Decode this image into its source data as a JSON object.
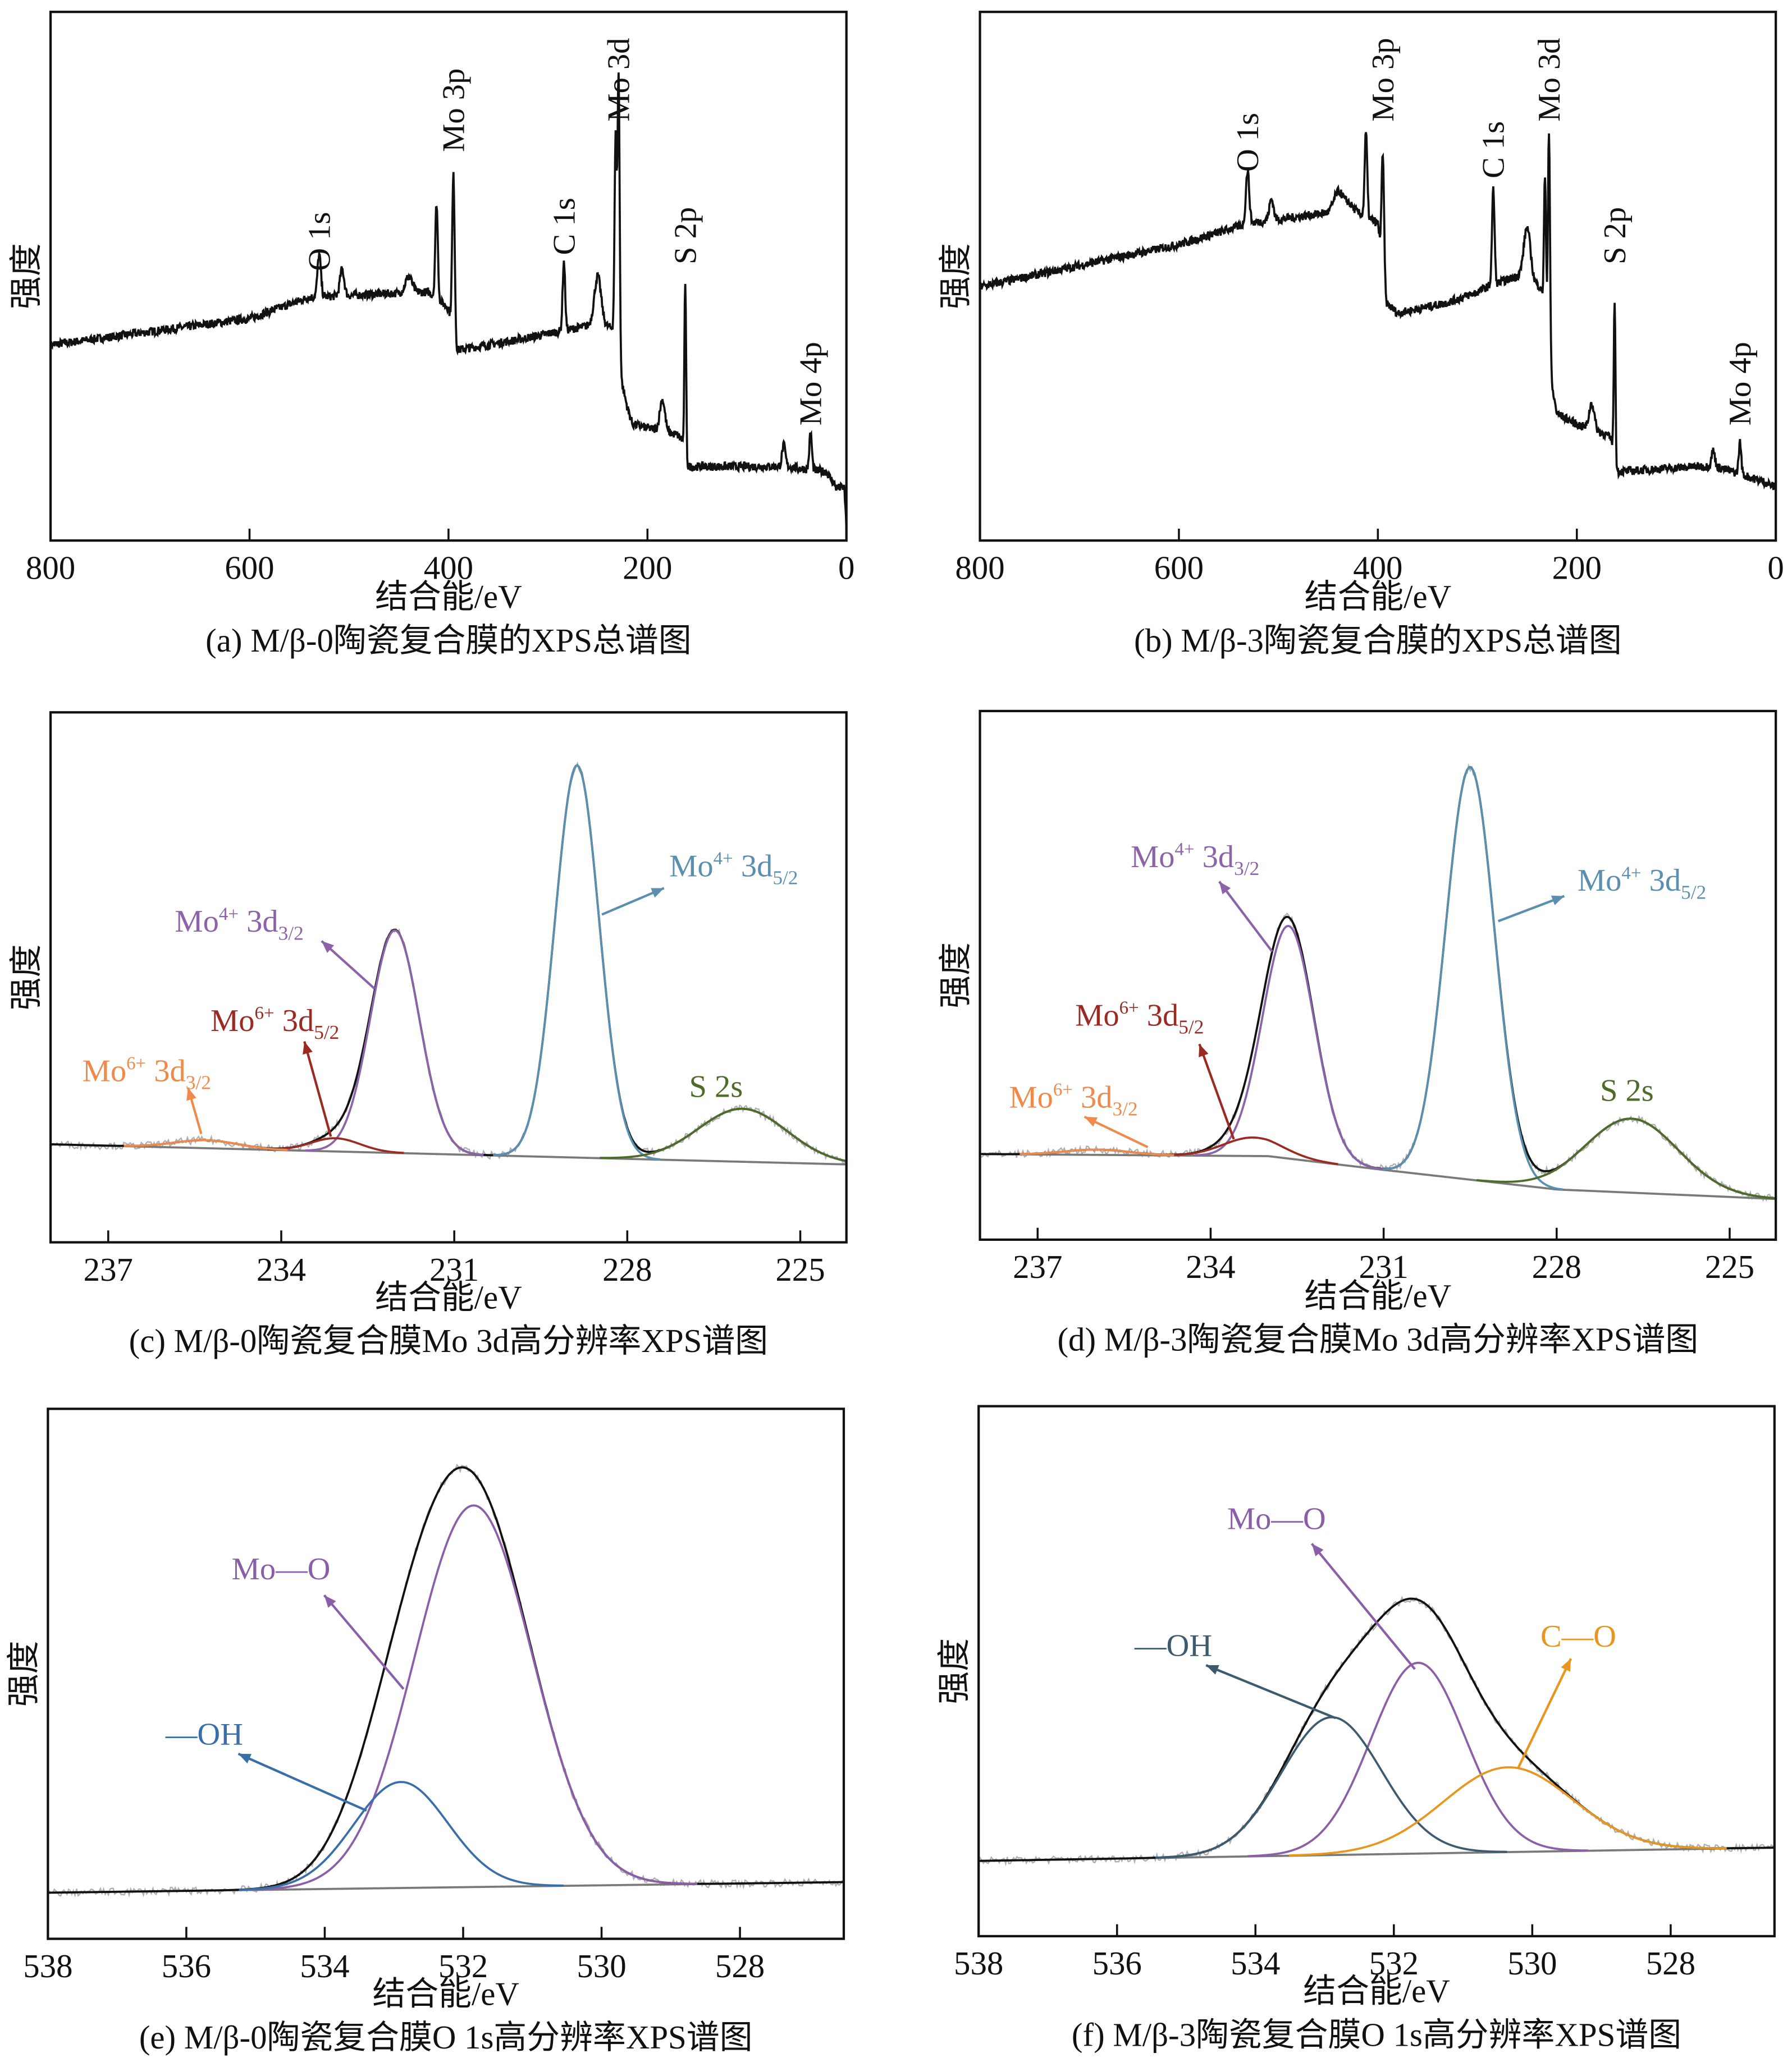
{
  "chart_data": [
    {
      "id": "a",
      "type": "line",
      "caption": "(a) M/β-0陶瓷复合膜的XPS总谱图",
      "xlabel": "结合能/eV",
      "ylabel": "强度",
      "xlim": [
        800,
        0
      ],
      "ylim": [
        0,
        100
      ],
      "x_reversed": true,
      "xticks": [
        800,
        600,
        400,
        200,
        0
      ],
      "grid": false,
      "envelope_color": "#111111",
      "background": [
        [
          800,
          37
        ],
        [
          600,
          42
        ],
        [
          540,
          46
        ],
        [
          430,
          47
        ],
        [
          420,
          47
        ],
        [
          400,
          44
        ],
        [
          392,
          36
        ],
        [
          330,
          38
        ],
        [
          250,
          41
        ],
        [
          232,
          40
        ],
        [
          226,
          30
        ],
        [
          220,
          25
        ],
        [
          215,
          22
        ],
        [
          170,
          20
        ],
        [
          165,
          19
        ],
        [
          160,
          14
        ],
        [
          100,
          14
        ],
        [
          60,
          14
        ],
        [
          20,
          13
        ],
        [
          10,
          10
        ],
        [
          2,
          10
        ],
        [
          0,
          2
        ]
      ],
      "peaks": [
        {
          "center": 530,
          "amplitude": 8,
          "fwhm": 4
        },
        {
          "center": 507,
          "amplitude": 5,
          "fwhm": 5
        },
        {
          "center": 440,
          "amplitude": 3,
          "fwhm": 8
        },
        {
          "center": 412,
          "amplitude": 18,
          "fwhm": 3
        },
        {
          "center": 395,
          "amplitude": 30,
          "fwhm": 3
        },
        {
          "center": 284,
          "amplitude": 13,
          "fwhm": 3
        },
        {
          "center": 250,
          "amplitude": 9,
          "fwhm": 8
        },
        {
          "center": 229,
          "amplitude": 53,
          "fwhm": 2.5
        },
        {
          "center": 232,
          "amplitude": 36,
          "fwhm": 2.5
        },
        {
          "center": 185,
          "amplitude": 6,
          "fwhm": 6
        },
        {
          "center": 162,
          "amplitude": 33,
          "fwhm": 2
        },
        {
          "center": 63,
          "amplitude": 4,
          "fwhm": 4
        },
        {
          "center": 36,
          "amplitude": 7,
          "fwhm": 3
        }
      ],
      "peak_labels": [
        {
          "text": "O 1s",
          "x": 530
        },
        {
          "text": "Mo 3p",
          "x": 395
        },
        {
          "text": "C 1s",
          "x": 284
        },
        {
          "text": "Mo 3d",
          "x": 229
        },
        {
          "text": "S 2p",
          "x": 162
        },
        {
          "text": "Mo 4p",
          "x": 36
        }
      ]
    },
    {
      "id": "b",
      "type": "line",
      "caption": "(b) M/β-3陶瓷复合膜的XPS总谱图",
      "xlabel": "结合能/eV",
      "ylabel": "强度",
      "xlim": [
        800,
        0
      ],
      "ylim": [
        0,
        100
      ],
      "x_reversed": true,
      "xticks": [
        800,
        600,
        400,
        200,
        0
      ],
      "grid": false,
      "envelope_color": "#111111",
      "background": [
        [
          800,
          48
        ],
        [
          700,
          52
        ],
        [
          600,
          56
        ],
        [
          530,
          60
        ],
        [
          450,
          62
        ],
        [
          430,
          64
        ],
        [
          420,
          62
        ],
        [
          400,
          60
        ],
        [
          392,
          45
        ],
        [
          380,
          43
        ],
        [
          330,
          45
        ],
        [
          300,
          47
        ],
        [
          290,
          48
        ],
        [
          260,
          50
        ],
        [
          236,
          48
        ],
        [
          226,
          30
        ],
        [
          220,
          24
        ],
        [
          200,
          22
        ],
        [
          170,
          20
        ],
        [
          165,
          19
        ],
        [
          160,
          13
        ],
        [
          80,
          14
        ],
        [
          60,
          14
        ],
        [
          10,
          11
        ],
        [
          0,
          10
        ]
      ],
      "peaks": [
        {
          "center": 531,
          "amplitude": 10,
          "fwhm": 4
        },
        {
          "center": 507,
          "amplitude": 4,
          "fwhm": 5
        },
        {
          "center": 440,
          "amplitude": 3,
          "fwhm": 10
        },
        {
          "center": 412,
          "amplitude": 16,
          "fwhm": 3
        },
        {
          "center": 395,
          "amplitude": 22,
          "fwhm": 3
        },
        {
          "center": 284,
          "amplitude": 18,
          "fwhm": 3
        },
        {
          "center": 250,
          "amplitude": 10,
          "fwhm": 8
        },
        {
          "center": 228,
          "amplitude": 44,
          "fwhm": 2.5
        },
        {
          "center": 232,
          "amplitude": 28,
          "fwhm": 2.5
        },
        {
          "center": 185,
          "amplitude": 5,
          "fwhm": 6
        },
        {
          "center": 162,
          "amplitude": 30,
          "fwhm": 2
        },
        {
          "center": 63,
          "amplitude": 3,
          "fwhm": 4
        },
        {
          "center": 36,
          "amplitude": 6,
          "fwhm": 3
        }
      ],
      "peak_labels": [
        {
          "text": "O 1s",
          "x": 531
        },
        {
          "text": "Mo 3p",
          "x": 395
        },
        {
          "text": "C 1s",
          "x": 284
        },
        {
          "text": "Mo 3d",
          "x": 228
        },
        {
          "text": "S 2p",
          "x": 162
        },
        {
          "text": "Mo 4p",
          "x": 36
        }
      ]
    },
    {
      "id": "c",
      "type": "line",
      "caption": "(c) M/β-0陶瓷复合膜Mo 3d高分辨率XPS谱图",
      "xlabel": "结合能/eV",
      "ylabel": "强度",
      "xlim": [
        238,
        224.2
      ],
      "ylim": [
        0,
        100
      ],
      "x_reversed": true,
      "xticks": [
        237,
        234,
        231,
        228,
        225
      ],
      "grid": false,
      "envelope_color": "#111111",
      "raw_color": "#b0b0b0",
      "background_color": "#7a7a7a",
      "background": [
        [
          238,
          18.5
        ],
        [
          224.2,
          14.7
        ]
      ],
      "components": [
        {
          "label": {
            "base": "Mo",
            "sup": "4+",
            "mid": " 3d",
            "sub": "5/2"
          },
          "center": 228.87,
          "amplitude": 74,
          "fwhm": 0.9,
          "color": "#5b8fb0"
        },
        {
          "label": {
            "base": "Mo",
            "sup": "4+",
            "mid": " 3d",
            "sub": "3/2"
          },
          "center": 232.03,
          "amplitude": 42,
          "fwhm": 1.0,
          "color": "#8a63a8"
        },
        {
          "label": {
            "base": "Mo",
            "sup": "6+",
            "mid": " 3d",
            "sub": "5/2"
          },
          "center": 233.06,
          "amplitude": 2.5,
          "fwhm": 1.0,
          "color": "#9b2a22"
        },
        {
          "label": {
            "base": "Mo",
            "sup": "6+",
            "mid": " 3d",
            "sub": "3/2"
          },
          "center": 235.3,
          "amplitude": 1.5,
          "fwhm": 1.3,
          "color": "#f08a4b"
        },
        {
          "label": {
            "base": "S 2s",
            "sup": "",
            "mid": "",
            "sub": ""
          },
          "center": 226.0,
          "amplitude": 10,
          "fwhm": 1.8,
          "color": "#4e6b2a"
        }
      ]
    },
    {
      "id": "d",
      "type": "line",
      "caption": "(d) M/β-3陶瓷复合膜Mo 3d高分辨率XPS谱图",
      "xlabel": "结合能/eV",
      "ylabel": "强度",
      "xlim": [
        238,
        224.2
      ],
      "ylim": [
        0,
        100
      ],
      "x_reversed": true,
      "xticks": [
        237,
        234,
        231,
        228,
        225
      ],
      "grid": false,
      "envelope_color": "#111111",
      "raw_color": "#b0b0b0",
      "background_color": "#7a7a7a",
      "background": [
        [
          238,
          16.2
        ],
        [
          233,
          15.8
        ],
        [
          231,
          13.2
        ],
        [
          228,
          9.5
        ],
        [
          224.2,
          7.7
        ]
      ],
      "components": [
        {
          "label": {
            "base": "Mo",
            "sup": "4+",
            "mid": " 3d",
            "sub": "5/2"
          },
          "center": 229.5,
          "amplitude": 78,
          "fwhm": 1.0,
          "color": "#5b8fb0"
        },
        {
          "label": {
            "base": "Mo",
            "sup": "4+",
            "mid": " 3d",
            "sub": "3/2"
          },
          "center": 232.65,
          "amplitude": 44,
          "fwhm": 1.05,
          "color": "#8a63a8"
        },
        {
          "label": {
            "base": "Mo",
            "sup": "6+",
            "mid": " 3d",
            "sub": "5/2"
          },
          "center": 233.27,
          "amplitude": 3.5,
          "fwhm": 1.2,
          "color": "#9b2a22"
        },
        {
          "label": {
            "base": "Mo",
            "sup": "6+",
            "mid": " 3d",
            "sub": "3/2"
          },
          "center": 235.97,
          "amplitude": 1,
          "fwhm": 1.3,
          "color": "#f08a4b"
        },
        {
          "label": {
            "base": "S 2s",
            "sup": "",
            "mid": "",
            "sub": ""
          },
          "center": 226.7,
          "amplitude": 14,
          "fwhm": 1.9,
          "color": "#4e6b2a"
        }
      ]
    },
    {
      "id": "e",
      "type": "line",
      "caption": "(e) M/β-0陶瓷复合膜O 1s高分辨率XPS谱图",
      "xlabel": "结合能/eV",
      "ylabel": "强度",
      "xlim": [
        538,
        526.5
      ],
      "ylim": [
        0,
        100
      ],
      "x_reversed": true,
      "xticks": [
        538,
        536,
        534,
        532,
        530,
        528
      ],
      "grid": false,
      "envelope_color": "#111111",
      "raw_color": "#b0b0b0",
      "background_color": "#7a7a7a",
      "background": [
        [
          538,
          8.7
        ],
        [
          526.5,
          10.7
        ]
      ],
      "components": [
        {
          "label": {
            "base": "Mo—O",
            "sup": "",
            "mid": "",
            "sub": ""
          },
          "center": 531.85,
          "amplitude": 72,
          "fwhm": 2.0,
          "color": "#8a5fa8"
        },
        {
          "label": {
            "base": "—OH",
            "sup": "",
            "mid": "",
            "sub": ""
          },
          "center": 532.9,
          "amplitude": 20,
          "fwhm": 1.6,
          "color": "#3a6ea8"
        }
      ]
    },
    {
      "id": "f",
      "type": "line",
      "caption": "(f) M/β-3陶瓷复合膜O 1s高分辨率XPS谱图",
      "xlabel": "结合能/eV",
      "ylabel": "强度",
      "xlim": [
        538,
        526.5
      ],
      "ylim": [
        0,
        100
      ],
      "x_reversed": true,
      "xticks": [
        538,
        536,
        534,
        532,
        530,
        528
      ],
      "grid": false,
      "envelope_color": "#111111",
      "raw_color": "#b0b0b0",
      "background_color": "#7a7a7a",
      "background": [
        [
          538,
          14.2
        ],
        [
          526.5,
          16.7
        ]
      ],
      "components": [
        {
          "label": {
            "base": "Mo—O",
            "sup": "",
            "mid": "",
            "sub": ""
          },
          "center": 531.65,
          "amplitude": 36,
          "fwhm": 1.6,
          "color": "#8a5fa8"
        },
        {
          "label": {
            "base": "—OH",
            "sup": "",
            "mid": "",
            "sub": ""
          },
          "center": 532.9,
          "amplitude": 26,
          "fwhm": 1.7,
          "color": "#3d5a6e"
        },
        {
          "label": {
            "base": "C—O",
            "sup": "",
            "mid": "",
            "sub": ""
          },
          "center": 530.35,
          "amplitude": 16,
          "fwhm": 2.2,
          "color": "#e8961e"
        }
      ]
    }
  ]
}
